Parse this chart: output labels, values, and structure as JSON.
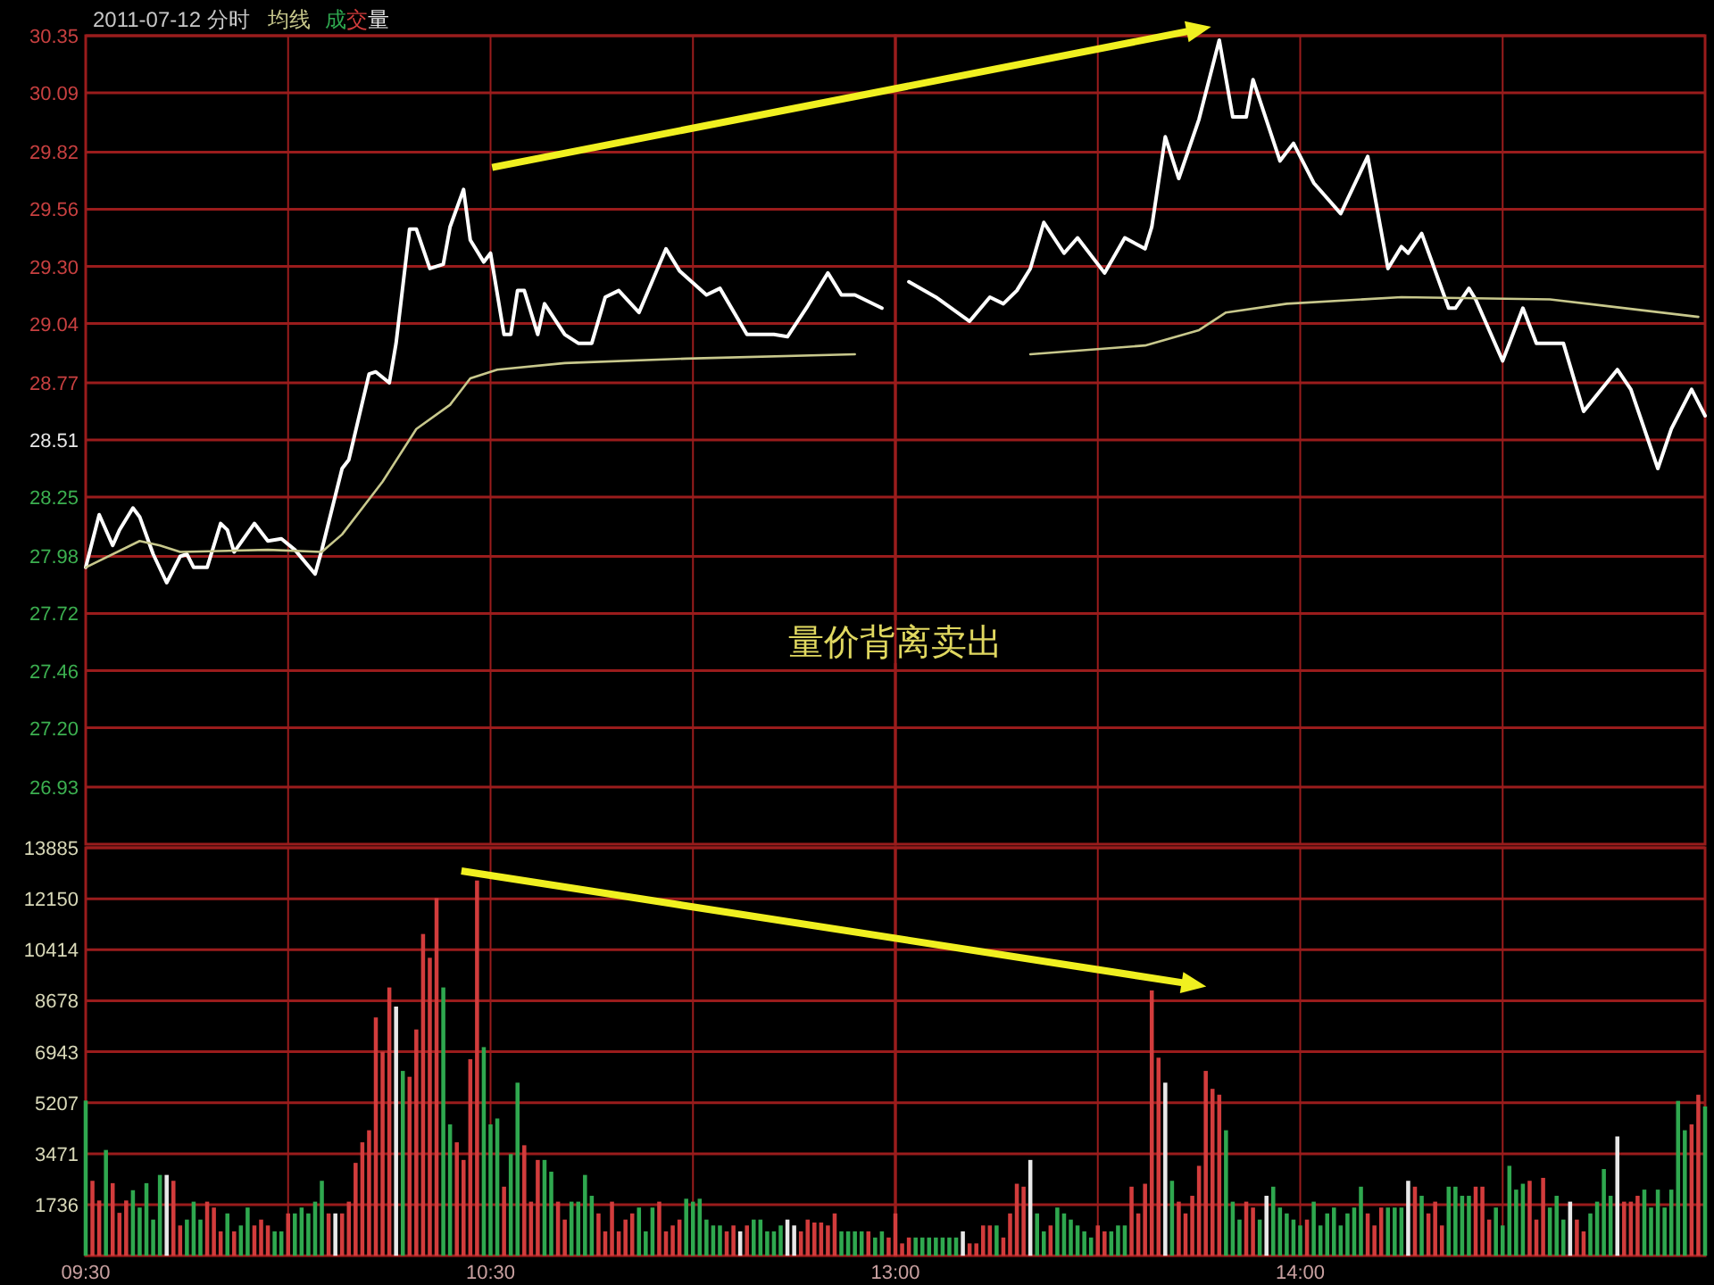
{
  "chart_data": [
    {
      "type": "line",
      "title": "2011-07-12 分时",
      "annotations": [
        "量价背离卖出"
      ],
      "grid": true,
      "legend": "top left",
      "tick_labels": "y",
      "xlim": [
        "2011-07-12T09:30",
        "2011-07-12T11:30"
      ],
      "xticks": [
        {
          "value": "2011-07-12T09:30",
          "label": null
        },
        {
          "value": "2011-07-12T10:00",
          "label": null
        },
        {
          "value": "2011-07-12T10:30",
          "label": null
        },
        {
          "value": "2011-07-12T11:00",
          "label": null
        },
        {
          "value": "2011-07-12T11:30",
          "label": null
        }
      ],
      "ylim": [
        26.67,
        30.35
      ],
      "yticks": [
        30.35,
        30.09,
        29.82,
        29.56,
        {
          "value": 29.3,
          "label": "29.30"
        },
        29.04,
        28.77,
        28.51,
        28.25,
        27.98,
        27.72,
        27.46,
        {
          "value": 27.2,
          "label": "27.20"
        },
        26.93
      ],
      "series": [
        {
          "color": "#ffffff",
          "x": [
            "2011-07-12T09:30",
            "2011-07-12T09:32",
            "2011-07-12T09:34",
            "2011-07-12T09:35",
            "2011-07-12T09:37",
            "2011-07-12T09:38",
            "2011-07-12T09:40",
            "2011-07-12T09:42",
            "2011-07-12T09:44",
            "2011-07-12T09:45",
            "2011-07-12T09:46",
            "2011-07-12T09:48",
            "2011-07-12T09:50",
            "2011-07-12T09:51",
            "2011-07-12T09:52",
            "2011-07-12T09:55",
            "2011-07-12T09:57",
            "2011-07-12T09:59",
            "2011-07-12T10:01",
            "2011-07-12T10:04",
            "2011-07-12T10:05",
            "2011-07-12T10:08",
            "2011-07-12T10:09",
            "2011-07-12T10:12",
            "2011-07-12T10:13",
            "2011-07-12T10:15",
            "2011-07-12T10:16",
            "2011-07-12T10:18",
            "2011-07-12T10:19",
            "2011-07-12T10:21",
            "2011-07-12T10:23",
            "2011-07-12T10:24",
            "2011-07-12T10:26",
            "2011-07-12T10:27",
            "2011-07-12T10:29",
            "2011-07-12T10:30",
            "2011-07-12T10:32",
            "2011-07-12T10:33",
            "2011-07-12T10:34",
            "2011-07-12T10:35",
            "2011-07-12T10:37",
            "2011-07-12T10:38",
            "2011-07-12T10:41",
            "2011-07-12T10:43",
            "2011-07-12T10:45",
            "2011-07-12T10:47",
            "2011-07-12T10:49",
            "2011-07-12T10:52",
            "2011-07-12T10:56",
            "2011-07-12T10:58",
            "2011-07-12T11:02",
            "2011-07-12T11:04",
            "2011-07-12T11:08",
            "2011-07-12T11:12",
            "2011-07-12T11:14",
            "2011-07-12T11:17",
            "2011-07-12T11:20",
            "2011-07-12T11:22",
            "2011-07-12T11:24",
            "2011-07-12T11:28"
          ],
          "values": [
            27.93,
            28.17,
            28.03,
            28.1,
            28.2,
            28.16,
            27.99,
            27.86,
            27.98,
            27.99,
            27.93,
            27.93,
            28.13,
            28.1,
            28.0,
            28.13,
            28.05,
            28.06,
            28.01,
            27.9,
            28.01,
            28.38,
            28.42,
            28.81,
            28.82,
            28.77,
            28.95,
            29.47,
            29.47,
            29.29,
            29.31,
            29.48,
            29.65,
            29.42,
            29.32,
            29.36,
            28.99,
            28.99,
            29.19,
            29.19,
            28.99,
            29.13,
            28.99,
            28.95,
            28.95,
            29.16,
            29.19,
            29.09,
            29.38,
            29.28,
            29.17,
            29.2,
            28.99,
            28.99,
            28.98,
            29.12,
            29.27,
            29.17,
            29.17,
            29.11
          ]
        },
        {
          "name": "均线",
          "color": "#c8c88c",
          "x": [
            "2011-07-12T09:30",
            "2011-07-12T09:38",
            "2011-07-12T09:41",
            "2011-07-12T09:44",
            "2011-07-12T09:57",
            "2011-07-12T10:05",
            "2011-07-12T10:08",
            "2011-07-12T10:14",
            "2011-07-12T10:19",
            "2011-07-12T10:24",
            "2011-07-12T10:27",
            "2011-07-12T10:31",
            "2011-07-12T10:41",
            "2011-07-12T10:59",
            "2011-07-12T11:24"
          ],
          "values": [
            27.93,
            28.05,
            28.03,
            28.0,
            28.01,
            28.0,
            28.08,
            28.32,
            28.56,
            28.67,
            28.79,
            28.83,
            28.86,
            28.88,
            28.9
          ]
        }
      ]
    },
    {
      "type": "line",
      "grid": true,
      "tick_labels": false,
      "xlim": [
        "2011-07-12T13:00",
        "2011-07-12T15:00"
      ],
      "xticks": [
        {
          "value": "2011-07-12T13:00",
          "label": null
        },
        {
          "value": "2011-07-12T13:30",
          "label": null
        },
        {
          "value": "2011-07-12T14:00",
          "label": null
        },
        {
          "value": "2011-07-12T14:30",
          "label": null
        },
        {
          "value": "2011-07-12T15:00",
          "label": null
        }
      ],
      "ylim": [
        26.67,
        30.35
      ],
      "yticks": [
        30.35,
        30.09,
        29.82,
        29.56,
        29.3,
        29.04,
        28.77,
        28.51,
        28.25,
        27.98,
        27.72,
        27.46,
        27.2,
        26.93
      ],
      "series": [
        {
          "color": "#ffffff",
          "x": [
            "2011-07-12T13:02",
            "2011-07-12T13:06",
            "2011-07-12T13:11",
            "2011-07-12T13:14",
            "2011-07-12T13:16",
            "2011-07-12T13:18",
            "2011-07-12T13:20",
            "2011-07-12T13:22",
            "2011-07-12T13:25",
            "2011-07-12T13:27",
            "2011-07-12T13:31",
            "2011-07-12T13:34",
            "2011-07-12T13:37",
            "2011-07-12T13:38",
            "2011-07-12T13:40",
            "2011-07-12T13:42",
            "2011-07-12T13:45",
            "2011-07-12T13:48",
            "2011-07-12T13:50",
            "2011-07-12T13:52",
            "2011-07-12T13:53",
            "2011-07-12T13:57",
            "2011-07-12T13:59",
            "2011-07-12T14:02",
            "2011-07-12T14:06",
            "2011-07-12T14:10",
            "2011-07-12T14:13",
            "2011-07-12T14:15",
            "2011-07-12T14:16",
            "2011-07-12T14:18",
            "2011-07-12T14:22",
            "2011-07-12T14:23",
            "2011-07-12T14:25",
            "2011-07-12T14:26",
            "2011-07-12T14:30",
            "2011-07-12T14:33",
            "2011-07-12T14:35",
            "2011-07-12T14:39",
            "2011-07-12T14:42",
            "2011-07-12T14:47",
            "2011-07-12T14:49",
            "2011-07-12T14:53",
            "2011-07-12T14:55",
            "2011-07-12T14:58",
            "2011-07-12T15:00"
          ],
          "values": [
            29.23,
            29.16,
            29.05,
            29.16,
            29.13,
            29.19,
            29.29,
            29.5,
            29.36,
            29.43,
            29.27,
            29.43,
            29.38,
            29.48,
            29.89,
            29.7,
            29.97,
            30.33,
            29.98,
            29.98,
            30.15,
            29.78,
            29.86,
            29.68,
            29.54,
            29.8,
            29.29,
            29.39,
            29.36,
            29.45,
            29.11,
            29.11,
            29.2,
            29.15,
            28.87,
            29.11,
            28.95,
            28.95,
            28.64,
            28.83,
            28.74,
            28.38,
            28.56,
            28.74,
            28.62
          ]
        },
        {
          "color": "#c8c88c",
          "x": [
            "2011-07-12T13:20",
            "2011-07-12T13:37",
            "2011-07-12T13:45",
            "2011-07-12T13:49",
            "2011-07-12T13:58",
            "2011-07-12T14:15",
            "2011-07-12T14:37",
            "2011-07-12T14:59"
          ],
          "values": [
            28.9,
            28.94,
            29.01,
            29.09,
            29.13,
            29.16,
            29.15,
            29.07
          ]
        }
      ]
    },
    {
      "type": "bar",
      "grid": true,
      "legend": "top left",
      "xlim": [
        "2011-07-12T09:30",
        "2011-07-12T11:30"
      ],
      "xticks": [
        {
          "value": "2011-07-12T09:30",
          "label": "09:30"
        },
        {
          "value": "2011-07-12T10:00",
          "label": null
        },
        {
          "value": "2011-07-12T10:30",
          "label": "10:30"
        },
        {
          "value": "2011-07-12T11:00",
          "label": null
        },
        {
          "value": "2011-07-12T11:30",
          "label": null
        }
      ],
      "ylim": [
        0,
        13885
      ],
      "yticks": [
        1736,
        3471,
        5207,
        6943,
        8678,
        10414,
        12150,
        13885
      ],
      "series": [
        {
          "name": "成交量",
          "x": [
            "2011-07-12T09:30",
            "2011-07-12T09:31",
            "2011-07-12T09:32",
            "2011-07-12T09:33",
            "2011-07-12T09:34",
            "2011-07-12T09:35",
            "2011-07-12T09:36",
            "2011-07-12T09:37",
            "2011-07-12T09:38",
            "2011-07-12T09:39",
            "2011-07-12T09:40",
            "2011-07-12T09:41",
            "2011-07-12T09:42",
            "2011-07-12T09:43",
            "2011-07-12T09:44",
            "2011-07-12T09:45",
            "2011-07-12T09:46",
            "2011-07-12T09:47",
            "2011-07-12T09:48",
            "2011-07-12T09:49",
            "2011-07-12T09:50",
            "2011-07-12T09:51",
            "2011-07-12T09:52",
            "2011-07-12T09:53",
            "2011-07-12T09:54",
            "2011-07-12T09:55",
            "2011-07-12T09:56",
            "2011-07-12T09:57",
            "2011-07-12T09:58",
            "2011-07-12T09:59",
            "2011-07-12T10:00",
            "2011-07-12T10:01",
            "2011-07-12T10:02",
            "2011-07-12T10:03",
            "2011-07-12T10:04",
            "2011-07-12T10:05",
            "2011-07-12T10:06",
            "2011-07-12T10:07",
            "2011-07-12T10:08",
            "2011-07-12T10:09",
            "2011-07-12T10:10",
            "2011-07-12T10:11",
            "2011-07-12T10:12",
            "2011-07-12T10:13",
            "2011-07-12T10:14",
            "2011-07-12T10:15",
            "2011-07-12T10:16",
            "2011-07-12T10:17",
            "2011-07-12T10:18",
            "2011-07-12T10:19",
            "2011-07-12T10:20",
            "2011-07-12T10:21",
            "2011-07-12T10:22",
            "2011-07-12T10:23",
            "2011-07-12T10:24",
            "2011-07-12T10:25",
            "2011-07-12T10:26",
            "2011-07-12T10:27",
            "2011-07-12T10:28",
            "2011-07-12T10:29",
            "2011-07-12T10:30",
            "2011-07-12T10:31",
            "2011-07-12T10:32",
            "2011-07-12T10:33",
            "2011-07-12T10:34",
            "2011-07-12T10:35",
            "2011-07-12T10:36",
            "2011-07-12T10:37",
            "2011-07-12T10:38",
            "2011-07-12T10:39",
            "2011-07-12T10:40",
            "2011-07-12T10:41",
            "2011-07-12T10:42",
            "2011-07-12T10:43",
            "2011-07-12T10:44",
            "2011-07-12T10:45",
            "2011-07-12T10:46",
            "2011-07-12T10:47",
            "2011-07-12T10:48",
            "2011-07-12T10:49",
            "2011-07-12T10:50",
            "2011-07-12T10:51",
            "2011-07-12T10:52",
            "2011-07-12T10:53",
            "2011-07-12T10:54",
            "2011-07-12T10:55",
            "2011-07-12T10:56",
            "2011-07-12T10:57",
            "2011-07-12T10:58",
            "2011-07-12T10:59",
            "2011-07-12T11:00",
            "2011-07-12T11:01",
            "2011-07-12T11:02",
            "2011-07-12T11:03",
            "2011-07-12T11:04",
            "2011-07-12T11:05",
            "2011-07-12T11:06",
            "2011-07-12T11:07",
            "2011-07-12T11:08",
            "2011-07-12T11:09",
            "2011-07-12T11:10",
            "2011-07-12T11:11",
            "2011-07-12T11:12",
            "2011-07-12T11:13",
            "2011-07-12T11:14",
            "2011-07-12T11:15",
            "2011-07-12T11:16",
            "2011-07-12T11:17",
            "2011-07-12T11:18",
            "2011-07-12T11:19",
            "2011-07-12T11:20",
            "2011-07-12T11:21",
            "2011-07-12T11:22",
            "2011-07-12T11:23",
            "2011-07-12T11:24",
            "2011-07-12T11:25",
            "2011-07-12T11:26",
            "2011-07-12T11:27",
            "2011-07-12T11:28",
            "2011-07-12T11:29"
          ],
          "values": [
            5280,
            2550,
            1880,
            3600,
            2470,
            1460,
            1880,
            2230,
            1640,
            2470,
            1230,
            2750,
            2750,
            2550,
            1030,
            1230,
            1840,
            1230,
            1840,
            1640,
            830,
            1440,
            830,
            1030,
            1640,
            1030,
            1230,
            1030,
            830,
            830,
            1440,
            1440,
            1640,
            1440,
            1840,
            2550,
            1440,
            1440,
            1440,
            1840,
            3160,
            3860,
            4270,
            8110,
            6940,
            9130,
            8480,
            6290,
            6090,
            7700,
            10950,
            10140,
            12170,
            9130,
            4470,
            3860,
            3260,
            6690,
            12770,
            7100,
            4470,
            4670,
            2350,
            3460,
            5890,
            3760,
            1840,
            3260,
            3260,
            2860,
            1840,
            1230,
            1840,
            1840,
            2750,
            2040,
            1440,
            830,
            1840,
            830,
            1230,
            1440,
            1640,
            830,
            1640,
            1840,
            830,
            1030,
            1230,
            1940,
            1840,
            1940,
            1230,
            1030,
            1030,
            830,
            1030,
            830,
            1030,
            1230,
            1230,
            830,
            830,
            1030,
            1230,
            1030,
            830,
            1230,
            1130,
            1130,
            1030,
            1440,
            830,
            830,
            830,
            830,
            830,
            620,
            830,
            620
          ],
          "colors": [
            "#2fa84f",
            "#d23c3c",
            "#d23c3c",
            "#2fa84f",
            "#d23c3c",
            "#d23c3c",
            "#d23c3c",
            "#2fa84f",
            "#2fa84f",
            "#2fa84f",
            "#2fa84f",
            "#2fa84f",
            "#e8e8e8",
            "#d23c3c",
            "#d23c3c",
            "#2fa84f",
            "#2fa84f",
            "#2fa84f",
            "#d23c3c",
            "#d23c3c",
            "#d23c3c",
            "#2fa84f",
            "#d23c3c",
            "#2fa84f",
            "#2fa84f",
            "#d23c3c",
            "#d23c3c",
            "#d23c3c",
            "#2fa84f",
            "#2fa84f",
            "#d23c3c",
            "#2fa84f",
            "#2fa84f",
            "#2fa84f",
            "#2fa84f",
            "#2fa84f",
            "#d23c3c",
            "#e8e8e8",
            "#d23c3c",
            "#d23c3c",
            "#d23c3c",
            "#d23c3c",
            "#d23c3c",
            "#d23c3c",
            "#d23c3c",
            "#d23c3c",
            "#e8e8e8",
            "#2fa84f",
            "#d23c3c",
            "#d23c3c",
            "#d23c3c",
            "#d23c3c",
            "#d23c3c",
            "#2fa84f",
            "#2fa84f",
            "#d23c3c",
            "#d23c3c",
            "#d23c3c",
            "#d23c3c",
            "#2fa84f",
            "#2fa84f",
            "#2fa84f",
            "#d23c3c",
            "#2fa84f",
            "#2fa84f",
            "#d23c3c",
            "#d23c3c",
            "#d23c3c",
            "#2fa84f",
            "#2fa84f",
            "#d23c3c",
            "#d23c3c",
            "#2fa84f",
            "#2fa84f",
            "#2fa84f",
            "#2fa84f",
            "#d23c3c",
            "#d23c3c",
            "#d23c3c",
            "#d23c3c",
            "#d23c3c",
            "#d23c3c",
            "#2fa84f",
            "#2fa84f",
            "#2fa84f",
            "#d23c3c",
            "#d23c3c",
            "#d23c3c",
            "#d23c3c",
            "#2fa84f",
            "#2fa84f",
            "#2fa84f",
            "#2fa84f",
            "#2fa84f",
            "#2fa84f",
            "#d23c3c",
            "#d23c3c",
            "#e8e8e8",
            "#d23c3c",
            "#2fa84f",
            "#2fa84f",
            "#2fa84f",
            "#2fa84f",
            "#2fa84f",
            "#e8e8e8",
            "#e8e8e8",
            "#d23c3c",
            "#d23c3c",
            "#d23c3c",
            "#d23c3c",
            "#d23c3c",
            "#d23c3c",
            "#2fa84f",
            "#2fa84f",
            "#2fa84f",
            "#2fa84f",
            "#d23c3c",
            "#2fa84f",
            "#2fa84f",
            "#d23c3c"
          ]
        }
      ]
    },
    {
      "type": "bar",
      "grid": true,
      "tick_labels": "x",
      "xlim": [
        "2011-07-12T13:00",
        "2011-07-12T15:00"
      ],
      "xticks": [
        {
          "value": "2011-07-12T13:00",
          "label": "13:00"
        },
        {
          "value": "2011-07-12T13:30",
          "label": null
        },
        {
          "value": "2011-07-12T14:00",
          "label": "14:00"
        },
        {
          "value": "2011-07-12T14:30",
          "label": null
        },
        {
          "value": "2011-07-12T15:00",
          "label": null
        }
      ],
      "ylim": [
        0,
        13885
      ],
      "yticks": [
        1736,
        3471,
        5207,
        6943,
        8678,
        10414,
        12150,
        13885
      ],
      "series": [
        {
          "x": [
            "2011-07-12T13:00",
            "2011-07-12T13:01",
            "2011-07-12T13:02",
            "2011-07-12T13:03",
            "2011-07-12T13:04",
            "2011-07-12T13:05",
            "2011-07-12T13:06",
            "2011-07-12T13:07",
            "2011-07-12T13:08",
            "2011-07-12T13:09",
            "2011-07-12T13:10",
            "2011-07-12T13:11",
            "2011-07-12T13:12",
            "2011-07-12T13:13",
            "2011-07-12T13:14",
            "2011-07-12T13:15",
            "2011-07-12T13:16",
            "2011-07-12T13:17",
            "2011-07-12T13:18",
            "2011-07-12T13:19",
            "2011-07-12T13:20",
            "2011-07-12T13:21",
            "2011-07-12T13:22",
            "2011-07-12T13:23",
            "2011-07-12T13:24",
            "2011-07-12T13:25",
            "2011-07-12T13:26",
            "2011-07-12T13:27",
            "2011-07-12T13:28",
            "2011-07-12T13:29",
            "2011-07-12T13:30",
            "2011-07-12T13:31",
            "2011-07-12T13:32",
            "2011-07-12T13:33",
            "2011-07-12T13:34",
            "2011-07-12T13:35",
            "2011-07-12T13:36",
            "2011-07-12T13:37",
            "2011-07-12T13:38",
            "2011-07-12T13:39",
            "2011-07-12T13:40",
            "2011-07-12T13:41",
            "2011-07-12T13:42",
            "2011-07-12T13:43",
            "2011-07-12T13:44",
            "2011-07-12T13:45",
            "2011-07-12T13:46",
            "2011-07-12T13:47",
            "2011-07-12T13:48",
            "2011-07-12T13:49",
            "2011-07-12T13:50",
            "2011-07-12T13:51",
            "2011-07-12T13:52",
            "2011-07-12T13:53",
            "2011-07-12T13:54",
            "2011-07-12T13:55",
            "2011-07-12T13:56",
            "2011-07-12T13:57",
            "2011-07-12T13:58",
            "2011-07-12T13:59",
            "2011-07-12T14:00",
            "2011-07-12T14:01",
            "2011-07-12T14:02",
            "2011-07-12T14:03",
            "2011-07-12T14:04",
            "2011-07-12T14:05",
            "2011-07-12T14:06",
            "2011-07-12T14:07",
            "2011-07-12T14:08",
            "2011-07-12T14:09",
            "2011-07-12T14:10",
            "2011-07-12T14:11",
            "2011-07-12T14:12",
            "2011-07-12T14:13",
            "2011-07-12T14:14",
            "2011-07-12T14:15",
            "2011-07-12T14:16",
            "2011-07-12T14:17",
            "2011-07-12T14:18",
            "2011-07-12T14:19",
            "2011-07-12T14:20",
            "2011-07-12T14:21",
            "2011-07-12T14:22",
            "2011-07-12T14:23",
            "2011-07-12T14:24",
            "2011-07-12T14:25",
            "2011-07-12T14:26",
            "2011-07-12T14:27",
            "2011-07-12T14:28",
            "2011-07-12T14:29",
            "2011-07-12T14:30",
            "2011-07-12T14:31",
            "2011-07-12T14:32",
            "2011-07-12T14:33",
            "2011-07-12T14:34",
            "2011-07-12T14:35",
            "2011-07-12T14:36",
            "2011-07-12T14:37",
            "2011-07-12T14:38",
            "2011-07-12T14:39",
            "2011-07-12T14:40",
            "2011-07-12T14:41",
            "2011-07-12T14:42",
            "2011-07-12T14:43",
            "2011-07-12T14:44",
            "2011-07-12T14:45",
            "2011-07-12T14:46",
            "2011-07-12T14:47",
            "2011-07-12T14:48",
            "2011-07-12T14:49",
            "2011-07-12T14:50",
            "2011-07-12T14:51",
            "2011-07-12T14:52",
            "2011-07-12T14:53",
            "2011-07-12T14:54",
            "2011-07-12T14:55",
            "2011-07-12T14:56",
            "2011-07-12T14:57",
            "2011-07-12T14:58",
            "2011-07-12T14:59",
            "2011-07-12T15:00"
          ],
          "values": [
            1440,
            420,
            620,
            620,
            620,
            620,
            620,
            620,
            620,
            620,
            830,
            420,
            420,
            1030,
            1030,
            1030,
            620,
            1440,
            2450,
            2350,
            3260,
            1440,
            830,
            1030,
            1640,
            1440,
            1230,
            1030,
            830,
            620,
            1030,
            830,
            830,
            1030,
            1030,
            2350,
            1440,
            2450,
            9030,
            6740,
            5890,
            2550,
            1840,
            1440,
            2040,
            3060,
            6290,
            5680,
            5480,
            4270,
            1840,
            1230,
            1840,
            1640,
            1230,
            2040,
            2350,
            1640,
            1440,
            1230,
            1030,
            1230,
            1840,
            1030,
            1440,
            1640,
            1030,
            1440,
            1640,
            2350,
            1440,
            1030,
            1640,
            1640,
            1640,
            1640,
            2550,
            2350,
            2040,
            1440,
            1840,
            1030,
            2350,
            2350,
            2040,
            2040,
            2350,
            2350,
            1230,
            1640,
            1030,
            3060,
            2250,
            2450,
            2550,
            1230,
            2650,
            1640,
            2040,
            1230,
            1840,
            1230,
            830,
            1440,
            1840,
            2950,
            2040,
            4060,
            1840,
            1840,
            2040,
            2250,
            1640,
            2250,
            1640,
            2250,
            5270,
            4270,
            4470,
            5480,
            5080
          ],
          "colors": [
            "#d23c3c",
            "#d23c3c",
            "#d23c3c",
            "#2fa84f",
            "#2fa84f",
            "#2fa84f",
            "#2fa84f",
            "#2fa84f",
            "#2fa84f",
            "#2fa84f",
            "#e8e8e8",
            "#d23c3c",
            "#d23c3c",
            "#d23c3c",
            "#d23c3c",
            "#2fa84f",
            "#d23c3c",
            "#d23c3c",
            "#d23c3c",
            "#d23c3c",
            "#e8e8e8",
            "#2fa84f",
            "#2fa84f",
            "#d23c3c",
            "#2fa84f",
            "#2fa84f",
            "#2fa84f",
            "#2fa84f",
            "#2fa84f",
            "#2fa84f",
            "#d23c3c",
            "#d23c3c",
            "#2fa84f",
            "#2fa84f",
            "#2fa84f",
            "#d23c3c",
            "#d23c3c",
            "#d23c3c",
            "#d23c3c",
            "#d23c3c",
            "#e8e8e8",
            "#2fa84f",
            "#d23c3c",
            "#d23c3c",
            "#d23c3c",
            "#d23c3c",
            "#d23c3c",
            "#d23c3c",
            "#d23c3c",
            "#2fa84f",
            "#2fa84f",
            "#2fa84f",
            "#d23c3c",
            "#d23c3c",
            "#2fa84f",
            "#e8e8e8",
            "#2fa84f",
            "#2fa84f",
            "#2fa84f",
            "#2fa84f",
            "#2fa84f",
            "#d23c3c",
            "#2fa84f",
            "#2fa84f",
            "#2fa84f",
            "#2fa84f",
            "#2fa84f",
            "#2fa84f",
            "#2fa84f",
            "#2fa84f",
            "#d23c3c",
            "#d23c3c",
            "#d23c3c",
            "#2fa84f",
            "#2fa84f",
            "#2fa84f",
            "#e8e8e8",
            "#d23c3c",
            "#2fa84f",
            "#d23c3c",
            "#d23c3c",
            "#d23c3c",
            "#2fa84f",
            "#2fa84f",
            "#2fa84f",
            "#2fa84f",
            "#d23c3c",
            "#d23c3c",
            "#d23c3c",
            "#2fa84f",
            "#2fa84f",
            "#2fa84f",
            "#2fa84f",
            "#2fa84f",
            "#d23c3c",
            "#d23c3c",
            "#d23c3c",
            "#2fa84f",
            "#2fa84f",
            "#2fa84f",
            "#e8e8e8",
            "#d23c3c",
            "#d23c3c",
            "#2fa84f",
            "#2fa84f",
            "#2fa84f",
            "#2fa84f",
            "#e8e8e8",
            "#d23c3c",
            "#d23c3c",
            "#d23c3c",
            "#2fa84f",
            "#2fa84f",
            "#2fa84f",
            "#2fa84f",
            "#2fa84f",
            "#2fa84f",
            "#2fa84f",
            "#d23c3c",
            "#d23c3c",
            "#2fa84f"
          ]
        }
      ]
    }
  ]
}
